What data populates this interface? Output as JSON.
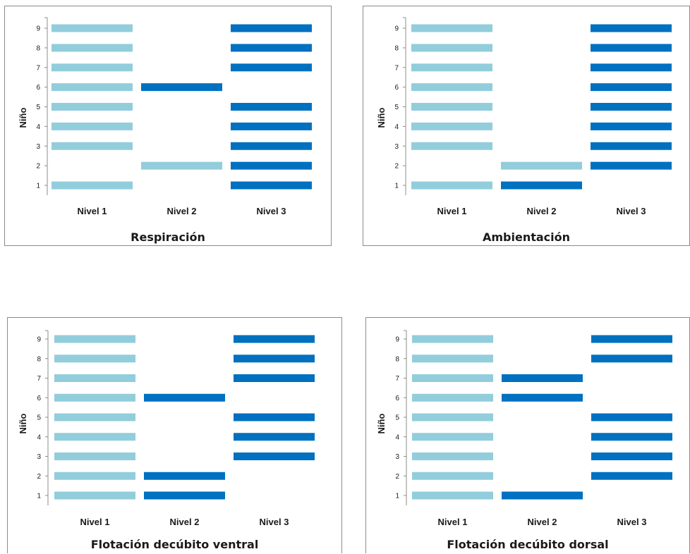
{
  "colors": {
    "light": "#92cddc",
    "dark": "#0070c0",
    "axis": "#8c8c8c"
  },
  "chart_data": [
    {
      "type": "bar",
      "title": "Respiración",
      "ylabel": "Niño",
      "categories": [
        "Nivel 1",
        "Nivel 2",
        "Nivel 3"
      ],
      "yticks": [
        "1",
        "2",
        "3",
        "4",
        "5",
        "6",
        "7",
        "8",
        "9"
      ],
      "ylim": [
        1,
        9
      ],
      "legend": "none",
      "grid": false,
      "bars": [
        {
          "nino": 1,
          "nivel": 1,
          "color": "light"
        },
        {
          "nino": 3,
          "nivel": 1,
          "color": "light"
        },
        {
          "nino": 4,
          "nivel": 1,
          "color": "light"
        },
        {
          "nino": 5,
          "nivel": 1,
          "color": "light"
        },
        {
          "nino": 6,
          "nivel": 1,
          "color": "light"
        },
        {
          "nino": 7,
          "nivel": 1,
          "color": "light"
        },
        {
          "nino": 8,
          "nivel": 1,
          "color": "light"
        },
        {
          "nino": 9,
          "nivel": 1,
          "color": "light"
        },
        {
          "nino": 2,
          "nivel": 2,
          "color": "light"
        },
        {
          "nino": 6,
          "nivel": 2,
          "color": "dark"
        },
        {
          "nino": 1,
          "nivel": 3,
          "color": "dark"
        },
        {
          "nino": 2,
          "nivel": 3,
          "color": "dark"
        },
        {
          "nino": 3,
          "nivel": 3,
          "color": "dark"
        },
        {
          "nino": 4,
          "nivel": 3,
          "color": "dark"
        },
        {
          "nino": 5,
          "nivel": 3,
          "color": "dark"
        },
        {
          "nino": 7,
          "nivel": 3,
          "color": "dark"
        },
        {
          "nino": 8,
          "nivel": 3,
          "color": "dark"
        },
        {
          "nino": 9,
          "nivel": 3,
          "color": "dark"
        }
      ]
    },
    {
      "type": "bar",
      "title": "Ambientación",
      "ylabel": "Niño",
      "categories": [
        "Nivel 1",
        "Nivel 2",
        "Nivel 3"
      ],
      "yticks": [
        "1",
        "2",
        "3",
        "4",
        "5",
        "6",
        "7",
        "8",
        "9"
      ],
      "ylim": [
        1,
        9
      ],
      "legend": "none",
      "grid": false,
      "bars": [
        {
          "nino": 1,
          "nivel": 1,
          "color": "light"
        },
        {
          "nino": 3,
          "nivel": 1,
          "color": "light"
        },
        {
          "nino": 4,
          "nivel": 1,
          "color": "light"
        },
        {
          "nino": 5,
          "nivel": 1,
          "color": "light"
        },
        {
          "nino": 6,
          "nivel": 1,
          "color": "light"
        },
        {
          "nino": 7,
          "nivel": 1,
          "color": "light"
        },
        {
          "nino": 8,
          "nivel": 1,
          "color": "light"
        },
        {
          "nino": 9,
          "nivel": 1,
          "color": "light"
        },
        {
          "nino": 1,
          "nivel": 2,
          "color": "dark"
        },
        {
          "nino": 2,
          "nivel": 2,
          "color": "light"
        },
        {
          "nino": 2,
          "nivel": 3,
          "color": "dark"
        },
        {
          "nino": 3,
          "nivel": 3,
          "color": "dark"
        },
        {
          "nino": 4,
          "nivel": 3,
          "color": "dark"
        },
        {
          "nino": 5,
          "nivel": 3,
          "color": "dark"
        },
        {
          "nino": 6,
          "nivel": 3,
          "color": "dark"
        },
        {
          "nino": 7,
          "nivel": 3,
          "color": "dark"
        },
        {
          "nino": 8,
          "nivel": 3,
          "color": "dark"
        },
        {
          "nino": 9,
          "nivel": 3,
          "color": "dark"
        }
      ]
    },
    {
      "type": "bar",
      "title": "Flotación decúbito ventral",
      "ylabel": "Niño",
      "categories": [
        "Nivel 1",
        "Nivel 2",
        "Nivel 3"
      ],
      "yticks": [
        "1",
        "2",
        "3",
        "4",
        "5",
        "6",
        "7",
        "8",
        "9"
      ],
      "ylim": [
        1,
        9
      ],
      "legend": "none",
      "grid": false,
      "bars": [
        {
          "nino": 1,
          "nivel": 1,
          "color": "light"
        },
        {
          "nino": 2,
          "nivel": 1,
          "color": "light"
        },
        {
          "nino": 3,
          "nivel": 1,
          "color": "light"
        },
        {
          "nino": 4,
          "nivel": 1,
          "color": "light"
        },
        {
          "nino": 5,
          "nivel": 1,
          "color": "light"
        },
        {
          "nino": 6,
          "nivel": 1,
          "color": "light"
        },
        {
          "nino": 7,
          "nivel": 1,
          "color": "light"
        },
        {
          "nino": 8,
          "nivel": 1,
          "color": "light"
        },
        {
          "nino": 9,
          "nivel": 1,
          "color": "light"
        },
        {
          "nino": 1,
          "nivel": 2,
          "color": "dark"
        },
        {
          "nino": 2,
          "nivel": 2,
          "color": "dark"
        },
        {
          "nino": 6,
          "nivel": 2,
          "color": "dark"
        },
        {
          "nino": 3,
          "nivel": 3,
          "color": "dark"
        },
        {
          "nino": 4,
          "nivel": 3,
          "color": "dark"
        },
        {
          "nino": 5,
          "nivel": 3,
          "color": "dark"
        },
        {
          "nino": 7,
          "nivel": 3,
          "color": "dark"
        },
        {
          "nino": 8,
          "nivel": 3,
          "color": "dark"
        },
        {
          "nino": 9,
          "nivel": 3,
          "color": "dark"
        }
      ]
    },
    {
      "type": "bar",
      "title": "Flotación decúbito dorsal",
      "ylabel": "Niño",
      "categories": [
        "Nivel 1",
        "Nivel 2",
        "Nivel 3"
      ],
      "yticks": [
        "1",
        "2",
        "3",
        "4",
        "5",
        "6",
        "7",
        "8",
        "9"
      ],
      "ylim": [
        1,
        9
      ],
      "legend": "none",
      "grid": false,
      "bars": [
        {
          "nino": 1,
          "nivel": 1,
          "color": "light"
        },
        {
          "nino": 2,
          "nivel": 1,
          "color": "light"
        },
        {
          "nino": 3,
          "nivel": 1,
          "color": "light"
        },
        {
          "nino": 4,
          "nivel": 1,
          "color": "light"
        },
        {
          "nino": 5,
          "nivel": 1,
          "color": "light"
        },
        {
          "nino": 6,
          "nivel": 1,
          "color": "light"
        },
        {
          "nino": 7,
          "nivel": 1,
          "color": "light"
        },
        {
          "nino": 8,
          "nivel": 1,
          "color": "light"
        },
        {
          "nino": 9,
          "nivel": 1,
          "color": "light"
        },
        {
          "nino": 1,
          "nivel": 2,
          "color": "dark"
        },
        {
          "nino": 6,
          "nivel": 2,
          "color": "dark"
        },
        {
          "nino": 7,
          "nivel": 2,
          "color": "dark"
        },
        {
          "nino": 2,
          "nivel": 3,
          "color": "dark"
        },
        {
          "nino": 3,
          "nivel": 3,
          "color": "dark"
        },
        {
          "nino": 4,
          "nivel": 3,
          "color": "dark"
        },
        {
          "nino": 5,
          "nivel": 3,
          "color": "dark"
        },
        {
          "nino": 8,
          "nivel": 3,
          "color": "dark"
        },
        {
          "nino": 9,
          "nivel": 3,
          "color": "dark"
        }
      ]
    }
  ]
}
